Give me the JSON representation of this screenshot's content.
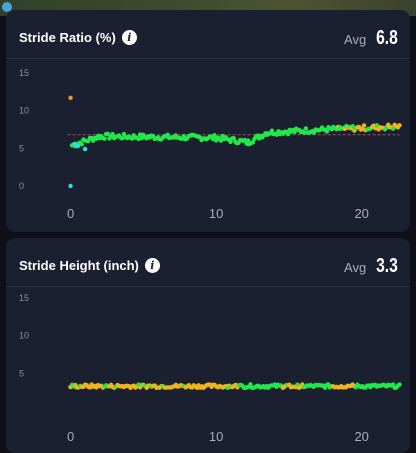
{
  "colors": {
    "background": "#0d1018",
    "card": "#1b2031",
    "good": "#22e84a",
    "warn": "#f0b41c",
    "orange": "#f29127",
    "cyan": "#27dfe6",
    "avg_line": "#b14a4a"
  },
  "cards": [
    {
      "title": "Stride Ratio (%)",
      "avg_label": "Avg",
      "avg_value": "6.8",
      "info_icon": "info-icon"
    },
    {
      "title": "Stride Height (inch)",
      "avg_label": "Avg",
      "avg_value": "3.3",
      "info_icon": "info-icon"
    }
  ],
  "chart_data": [
    {
      "type": "scatter",
      "title": "Stride Ratio (%)",
      "x_ticks": [
        "0",
        "10",
        "20"
      ],
      "y_ticks": [
        "15",
        "10",
        "5",
        "0"
      ],
      "xlim": [
        -1,
        22.7
      ],
      "ylim": [
        0,
        15
      ],
      "average": 6.8,
      "outliers": [
        {
          "x": 0.0,
          "y": 11.7,
          "color": "orange"
        },
        {
          "x": 0.0,
          "y": 0.0,
          "color": "cyan"
        },
        {
          "x": 0.3,
          "y": 5.6,
          "color": "cyan"
        },
        {
          "x": 0.5,
          "y": 5.3,
          "color": "cyan"
        },
        {
          "x": 1.0,
          "y": 4.9,
          "color": "cyan"
        }
      ],
      "series_segments": [
        {
          "x0": 0.1,
          "x1": 2.0,
          "y0": 5.4,
          "y1": 6.6
        },
        {
          "x0": 2.0,
          "x1": 10.0,
          "y0": 6.6,
          "y1": 6.4
        },
        {
          "x0": 10.0,
          "x1": 12.2,
          "y0": 6.4,
          "y1": 5.8
        },
        {
          "x0": 12.2,
          "x1": 13.5,
          "y0": 5.8,
          "y1": 7.1
        },
        {
          "x0": 13.5,
          "x1": 18.5,
          "y0": 7.1,
          "y1": 7.6
        },
        {
          "x0": 18.5,
          "x1": 22.6,
          "y0": 7.6,
          "y1": 7.9
        }
      ],
      "warn_from_x": 18.2
    },
    {
      "type": "scatter",
      "title": "Stride Height (inch)",
      "x_ticks": [
        "0",
        "10",
        "20"
      ],
      "y_ticks": [
        "15",
        "10",
        "5"
      ],
      "xlim": [
        -1,
        22.7
      ],
      "ylim": [
        0,
        15
      ],
      "average": 3.3,
      "series_segments": [
        {
          "x0": 0.0,
          "x1": 22.6,
          "y0": 3.3,
          "y1": 3.3
        }
      ],
      "warn_ranges": [
        [
          0.0,
          11.5
        ],
        [
          14.5,
          16.0
        ],
        [
          18.0,
          19.5
        ]
      ]
    }
  ]
}
